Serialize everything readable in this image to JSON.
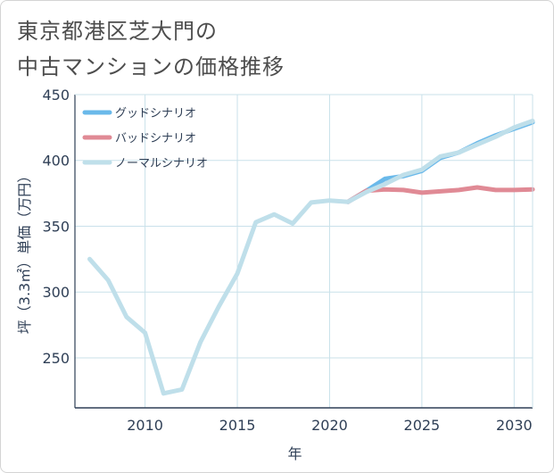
{
  "title": {
    "line1": "東京都港区芝大門の",
    "line2": "中古マンションの価格推移"
  },
  "chart_data": {
    "type": "line",
    "xlabel": "年",
    "ylabel": "坪（3.3㎡）単価（万円）",
    "xlim": [
      2006.2,
      2031
    ],
    "ylim": [
      212,
      450
    ],
    "x_ticks": [
      "2010",
      "2015",
      "2020",
      "2025",
      "2030"
    ],
    "y_ticks": [
      "250",
      "300",
      "350",
      "400",
      "450"
    ],
    "grid": true,
    "legend_position": "top-left",
    "series": [
      {
        "name": "グッドシナリオ",
        "color": "#6ab9ea",
        "x": [
          2021,
          2022,
          2023,
          2024,
          2025,
          2026,
          2027,
          2028,
          2029,
          2030,
          2031
        ],
        "y": [
          368.5,
          377,
          386,
          388,
          392,
          402,
          406,
          413,
          419,
          424,
          429
        ]
      },
      {
        "name": "バッドシナリオ",
        "color": "#e08a95",
        "x": [
          2021,
          2022,
          2023,
          2024,
          2025,
          2026,
          2027,
          2028,
          2029,
          2030,
          2031
        ],
        "y": [
          368.5,
          377,
          378,
          377.5,
          375.5,
          376.5,
          377.5,
          379.5,
          377.5,
          377.5,
          378
        ]
      },
      {
        "name": "ノーマルシナリオ",
        "color": "#bfdfea",
        "x": [
          2007,
          2008,
          2009,
          2010,
          2011,
          2012,
          2013,
          2014,
          2015,
          2016,
          2017,
          2018,
          2019,
          2020,
          2021,
          2022,
          2023,
          2024,
          2025,
          2026,
          2027,
          2028,
          2029,
          2030,
          2031
        ],
        "y": [
          325,
          309,
          281,
          269,
          223,
          226,
          262,
          289,
          314,
          353,
          359,
          352,
          368,
          369.5,
          368.5,
          376,
          382,
          389,
          393,
          403,
          406,
          412,
          418,
          425,
          430
        ]
      }
    ]
  }
}
